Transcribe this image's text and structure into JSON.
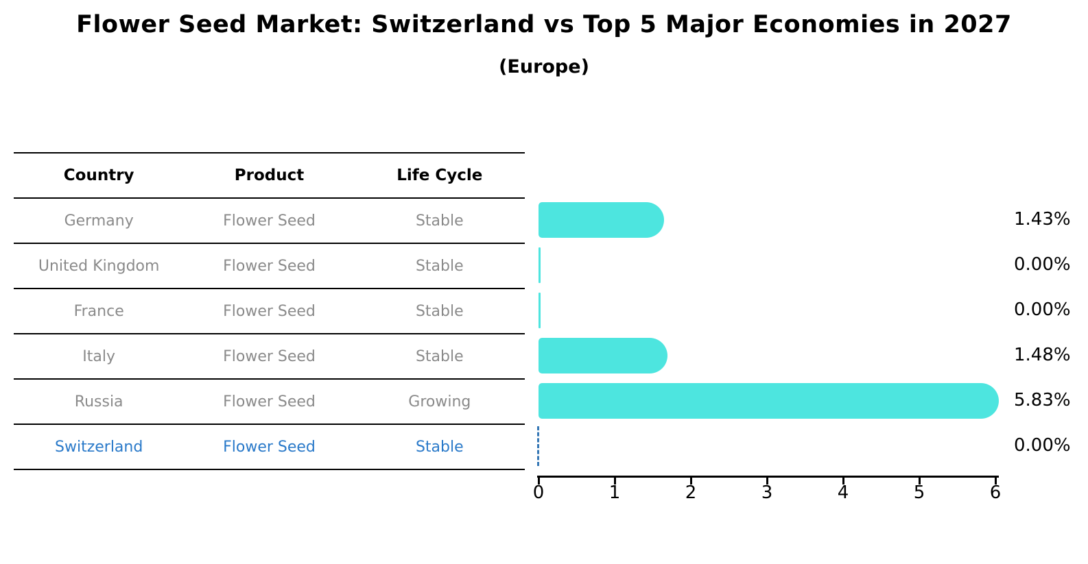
{
  "chart_data": {
    "type": "bar",
    "orientation": "horizontal",
    "title": "Flower Seed Market: Switzerland vs Top 5 Major Economies in 2027",
    "subtitle": "(Europe)",
    "categories": [
      "Germany",
      "United Kingdom",
      "France",
      "Italy",
      "Russia",
      "Switzerland"
    ],
    "values": [
      1.43,
      0.0,
      0.0,
      1.48,
      5.83,
      0.0
    ],
    "value_labels": [
      "1.43%",
      "0.00%",
      "0.00%",
      "1.48%",
      "5.83%",
      "0.00%"
    ],
    "xlabel": "",
    "ylabel": "",
    "xlim": [
      0,
      6
    ],
    "x_ticks": [
      "0",
      "1",
      "2",
      "3",
      "4",
      "5",
      "6"
    ],
    "grid": false,
    "legend": false,
    "bar_color": "#4de5df",
    "highlight_category": "Switzerland",
    "highlight_marker": "dashed-zero-line",
    "highlight_line_color": "#3577b5"
  },
  "table": {
    "headers": [
      "Country",
      "Product",
      "Life Cycle"
    ],
    "rows": [
      {
        "country": "Germany",
        "product": "Flower Seed",
        "life_cycle": "Stable",
        "highlight": false
      },
      {
        "country": "United Kingdom",
        "product": "Flower Seed",
        "life_cycle": "Stable",
        "highlight": false
      },
      {
        "country": "France",
        "product": "Flower Seed",
        "life_cycle": "Stable",
        "highlight": false
      },
      {
        "country": "Italy",
        "product": "Flower Seed",
        "life_cycle": "Stable",
        "highlight": false
      },
      {
        "country": "Russia",
        "product": "Flower Seed",
        "life_cycle": "Growing",
        "highlight": false
      },
      {
        "country": "Switzerland",
        "product": "Flower Seed",
        "life_cycle": "Stable",
        "highlight": true
      }
    ],
    "text_color": "#8a8a8a",
    "highlight_text_color": "#2979c9"
  }
}
